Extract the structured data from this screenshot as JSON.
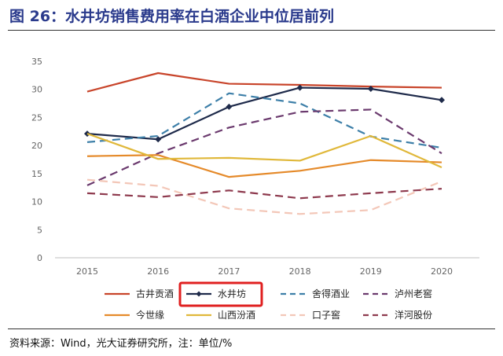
{
  "title": "图 26：水井坊销售费用率在白酒企业中位居前列",
  "source": "资料来源：Wind，光大证券研究所，注：单位/%",
  "chart_data": {
    "type": "line",
    "categories": [
      "2015",
      "2016",
      "2017",
      "2018",
      "2019",
      "2020"
    ],
    "ylim": [
      0,
      35
    ],
    "yticks": [
      0,
      5,
      10,
      15,
      20,
      25,
      30,
      35
    ],
    "grid": false,
    "legend_position": "bottom",
    "series": [
      {
        "name": "古井贡酒",
        "values": [
          29.6,
          32.9,
          31.0,
          30.8,
          30.5,
          30.3
        ],
        "color": "#c8442a",
        "style": "solid",
        "marker": false
      },
      {
        "name": "水井坊",
        "values": [
          22.1,
          21.1,
          26.9,
          30.3,
          30.1,
          28.1
        ],
        "color": "#1e2a4a",
        "style": "solid",
        "marker": true
      },
      {
        "name": "舍得酒业",
        "values": [
          20.6,
          21.7,
          29.3,
          27.5,
          21.6,
          19.6
        ],
        "color": "#3d7fa8",
        "style": "dashed",
        "marker": false
      },
      {
        "name": "泸州老窖",
        "values": [
          12.9,
          18.6,
          23.2,
          26.0,
          26.4,
          18.6
        ],
        "color": "#6b3a6e",
        "style": "dashed",
        "marker": false
      },
      {
        "name": "今世缘",
        "values": [
          18.1,
          18.3,
          14.4,
          15.5,
          17.4,
          17.0
        ],
        "color": "#e58a2a",
        "style": "solid",
        "marker": false
      },
      {
        "name": "山西汾酒",
        "values": [
          22.1,
          17.6,
          17.8,
          17.3,
          21.7,
          16.1
        ],
        "color": "#e0b83a",
        "style": "solid",
        "marker": false
      },
      {
        "name": "口子窖",
        "values": [
          13.9,
          12.8,
          8.8,
          7.8,
          8.5,
          13.6
        ],
        "color": "#f3c7b8",
        "style": "dashed",
        "marker": false
      },
      {
        "name": "洋河股份",
        "values": [
          11.5,
          10.8,
          12.0,
          10.6,
          11.5,
          12.3
        ],
        "color": "#8e3a4e",
        "style": "dashed",
        "marker": false
      }
    ],
    "highlight": "水井坊"
  }
}
